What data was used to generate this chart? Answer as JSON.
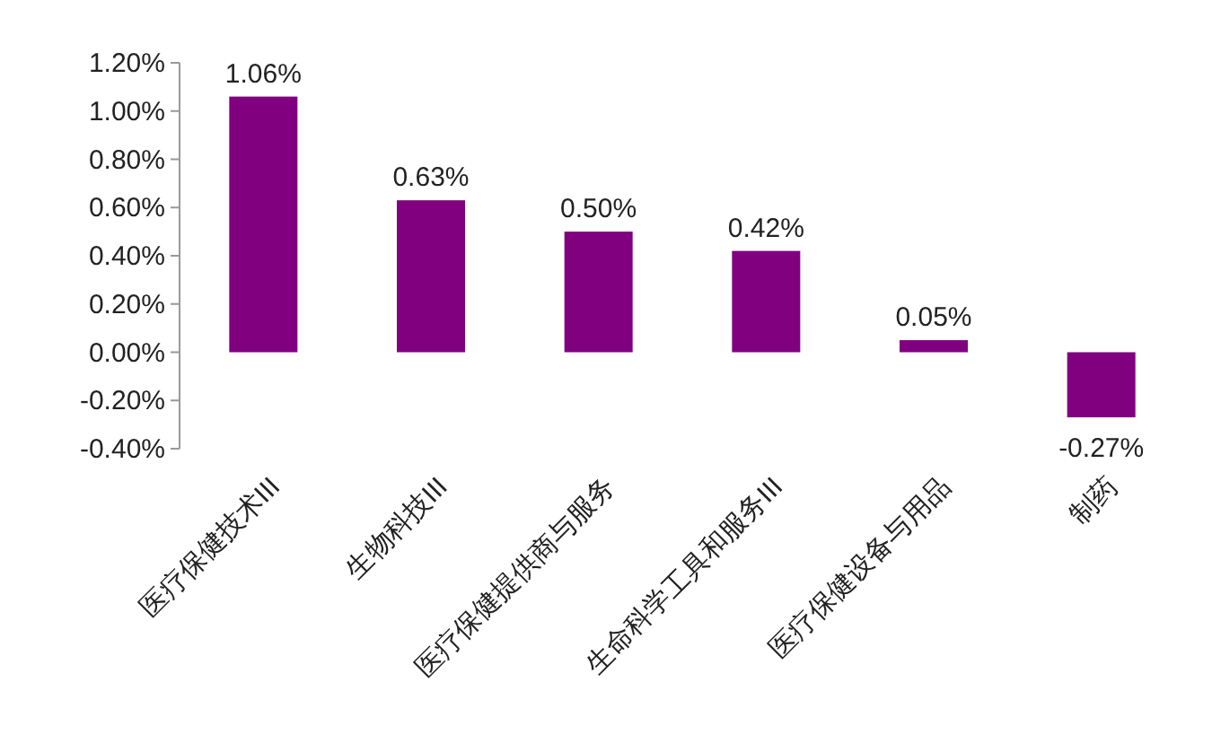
{
  "chart_data": {
    "type": "bar",
    "categories": [
      "医疗保健技术III",
      "生物科技III",
      "医疗保健提供商与服务",
      "生命科学工具和服务III",
      "医疗保健设备与用品",
      "制药"
    ],
    "values": [
      1.06,
      0.63,
      0.5,
      0.42,
      0.05,
      -0.27
    ],
    "value_labels": [
      "1.06%",
      "0.63%",
      "0.50%",
      "0.42%",
      "0.05%",
      "-0.27%"
    ],
    "color": "#800080",
    "ylim": [
      -0.4,
      1.2
    ],
    "yticks": [
      {
        "value": -0.4,
        "label": "-0.40%"
      },
      {
        "value": -0.2,
        "label": "-0.20%"
      },
      {
        "value": 0,
        "label": "0.00%"
      },
      {
        "value": 0.2,
        "label": "0.20%"
      },
      {
        "value": 0.4,
        "label": "0.40%"
      },
      {
        "value": 0.6,
        "label": "0.60%"
      },
      {
        "value": 0.8,
        "label": "0.80%"
      },
      {
        "value": 1.0,
        "label": "1.00%"
      },
      {
        "value": 1.2,
        "label": "1.20%"
      }
    ],
    "grid": false
  }
}
